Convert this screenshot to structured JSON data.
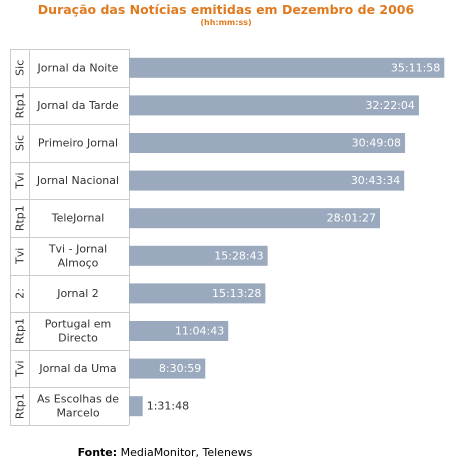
{
  "chart_data": {
    "type": "bar",
    "orientation": "horizontal",
    "title": "Duração das Notícias emitidas em Dezembro de 2006",
    "subtitle": "(hh:mm:ss)",
    "bar_color": "#9aa9bd",
    "title_color": "#e07a1f",
    "xlim_seconds": [
      0,
      127000
    ],
    "categories": [
      {
        "group": "Sic",
        "name": [
          "Jornal da Noite"
        ]
      },
      {
        "group": "Rtp1",
        "name": [
          "Jornal da Tarde"
        ]
      },
      {
        "group": "Sic",
        "name": [
          "Primeiro Jornal"
        ]
      },
      {
        "group": "Tvi",
        "name": [
          "Jornal Nacional"
        ]
      },
      {
        "group": "Rtp1",
        "name": [
          "TeleJornal"
        ]
      },
      {
        "group": "Tvi",
        "name": [
          "Tvi - Jornal",
          "Almoço"
        ]
      },
      {
        "group": "2:",
        "name": [
          "Jornal 2"
        ]
      },
      {
        "group": "Rtp1",
        "name": [
          "Portugal em",
          "Directo"
        ]
      },
      {
        "group": "Tvi",
        "name": [
          "Jornal da Uma"
        ]
      },
      {
        "group": "Rtp1",
        "name": [
          "As Escolhas de",
          "Marcelo"
        ]
      }
    ],
    "values": [
      "35:11:58",
      "32:22:04",
      "30:49:08",
      "30:43:34",
      "28:01:27",
      "15:28:43",
      "15:13:28",
      "11:04:43",
      "8:30:59",
      "1:31:48"
    ]
  },
  "footer": {
    "label": "Fonte:",
    "text": "MediaMonitor, Telenews"
  }
}
